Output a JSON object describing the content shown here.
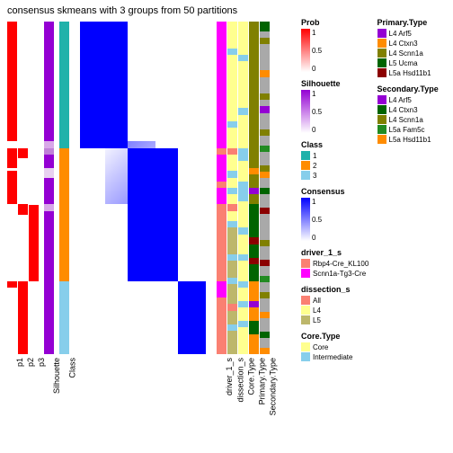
{
  "title": "consensus skmeans with 3 groups from 50 partitions",
  "colors": {
    "red": "#ff0000",
    "purple": "#9400d3",
    "teal": "#20b2aa",
    "orange": "#ff8c00",
    "lightblue": "#87ceeb",
    "blue": "#0000ff",
    "white": "#ffffff",
    "magenta": "#ff00ff",
    "salmon": "#fa8072",
    "yellow": "#ffff8f",
    "khaki": "#bdb76b",
    "olive": "#808000",
    "darkgreen": "#006400",
    "darkred": "#8b0000",
    "green": "#228b22",
    "gray": "#a9a9a9"
  },
  "columns": [
    {
      "key": "p1",
      "label": "p1",
      "width": 11
    },
    {
      "key": "p2",
      "label": "p2",
      "width": 11
    },
    {
      "key": "p3",
      "label": "p3",
      "width": 11
    },
    {
      "key": "gap1",
      "label": "",
      "width": 4
    },
    {
      "key": "silhouette",
      "label": "Silhouette",
      "width": 11
    },
    {
      "key": "gap2",
      "label": "",
      "width": 4
    },
    {
      "key": "class",
      "label": "Class",
      "width": 11
    },
    {
      "key": "gap3",
      "label": "",
      "width": 10
    },
    {
      "key": "consensus",
      "label": "",
      "width": 140
    },
    {
      "key": "gap4",
      "label": "",
      "width": 10
    },
    {
      "key": "driver",
      "label": "driver_1_s",
      "width": 11
    },
    {
      "key": "dissection",
      "label": "dissection_s",
      "width": 11
    },
    {
      "key": "coretype",
      "label": "Core.Type",
      "width": 11
    },
    {
      "key": "primary",
      "label": "Primary.Type",
      "width": 11
    },
    {
      "key": "secondary",
      "label": "Secondary.Type",
      "width": 11
    }
  ],
  "rows": 100,
  "blocks": {
    "p1": [
      {
        "h": 0.36,
        "c": "red"
      },
      {
        "h": 0.02,
        "c": "white"
      },
      {
        "h": 0.06,
        "c": "red"
      },
      {
        "h": 0.01,
        "c": "white"
      },
      {
        "h": 0.1,
        "c": "red"
      },
      {
        "h": 0.23,
        "c": "white"
      },
      {
        "h": 0.02,
        "c": "red"
      },
      {
        "h": 0.2,
        "c": "white"
      }
    ],
    "p2": [
      {
        "h": 0.38,
        "c": "white"
      },
      {
        "h": 0.03,
        "c": "red"
      },
      {
        "h": 0.14,
        "c": "white"
      },
      {
        "h": 0.03,
        "c": "red"
      },
      {
        "h": 0.2,
        "c": "white"
      },
      {
        "h": 0.22,
        "c": "red"
      }
    ],
    "p3": [
      {
        "h": 0.55,
        "c": "white"
      },
      {
        "h": 0.23,
        "c": "red"
      },
      {
        "h": 0.22,
        "c": "white"
      }
    ],
    "silhouette": [
      {
        "h": 0.36,
        "c": "purple"
      },
      {
        "h": 0.02,
        "c": "#d8a8e8"
      },
      {
        "h": 0.02,
        "c": "#c080d8"
      },
      {
        "h": 0.04,
        "c": "purple"
      },
      {
        "h": 0.03,
        "c": "#e8d0f0"
      },
      {
        "h": 0.08,
        "c": "purple"
      },
      {
        "h": 0.02,
        "c": "#d8a8e8"
      },
      {
        "h": 0.43,
        "c": "purple"
      }
    ],
    "class": [
      {
        "h": 0.38,
        "c": "teal"
      },
      {
        "h": 0.4,
        "c": "orange"
      },
      {
        "h": 0.22,
        "c": "lightblue"
      }
    ],
    "driver": [
      {
        "h": 0.38,
        "c": "magenta"
      },
      {
        "h": 0.02,
        "c": "salmon"
      },
      {
        "h": 0.08,
        "c": "magenta"
      },
      {
        "h": 0.02,
        "c": "salmon"
      },
      {
        "h": 0.05,
        "c": "magenta"
      },
      {
        "h": 0.23,
        "c": "salmon"
      },
      {
        "h": 0.05,
        "c": "magenta"
      },
      {
        "h": 0.17,
        "c": "salmon"
      }
    ],
    "dissection": [
      {
        "h": 0.08,
        "c": "yellow"
      },
      {
        "h": 0.02,
        "c": "lightblue"
      },
      {
        "h": 0.2,
        "c": "yellow"
      },
      {
        "h": 0.02,
        "c": "lightblue"
      },
      {
        "h": 0.06,
        "c": "yellow"
      },
      {
        "h": 0.02,
        "c": "salmon"
      },
      {
        "h": 0.05,
        "c": "yellow"
      },
      {
        "h": 0.02,
        "c": "lightblue"
      },
      {
        "h": 0.03,
        "c": "yellow"
      },
      {
        "h": 0.02,
        "c": "lightblue"
      },
      {
        "h": 0.03,
        "c": "yellow"
      },
      {
        "h": 0.02,
        "c": "salmon"
      },
      {
        "h": 0.03,
        "c": "yellow"
      },
      {
        "h": 0.02,
        "c": "lightblue"
      },
      {
        "h": 0.08,
        "c": "khaki"
      },
      {
        "h": 0.02,
        "c": "lightblue"
      },
      {
        "h": 0.05,
        "c": "khaki"
      },
      {
        "h": 0.02,
        "c": "lightblue"
      },
      {
        "h": 0.06,
        "c": "khaki"
      },
      {
        "h": 0.02,
        "c": "salmon"
      },
      {
        "h": 0.04,
        "c": "khaki"
      },
      {
        "h": 0.02,
        "c": "lightblue"
      },
      {
        "h": 0.07,
        "c": "khaki"
      }
    ],
    "coretype": [
      {
        "h": 0.1,
        "c": "yellow"
      },
      {
        "h": 0.02,
        "c": "lightblue"
      },
      {
        "h": 0.14,
        "c": "yellow"
      },
      {
        "h": 0.02,
        "c": "lightblue"
      },
      {
        "h": 0.1,
        "c": "yellow"
      },
      {
        "h": 0.04,
        "c": "lightblue"
      },
      {
        "h": 0.06,
        "c": "yellow"
      },
      {
        "h": 0.06,
        "c": "lightblue"
      },
      {
        "h": 0.08,
        "c": "yellow"
      },
      {
        "h": 0.02,
        "c": "lightblue"
      },
      {
        "h": 0.06,
        "c": "yellow"
      },
      {
        "h": 0.02,
        "c": "lightblue"
      },
      {
        "h": 0.06,
        "c": "yellow"
      },
      {
        "h": 0.02,
        "c": "lightblue"
      },
      {
        "h": 0.04,
        "c": "yellow"
      },
      {
        "h": 0.02,
        "c": "lightblue"
      },
      {
        "h": 0.04,
        "c": "yellow"
      },
      {
        "h": 0.02,
        "c": "lightblue"
      },
      {
        "h": 0.08,
        "c": "yellow"
      }
    ],
    "primary": [
      {
        "h": 0.38,
        "c": "olive"
      },
      {
        "h": 0.06,
        "c": "olive"
      },
      {
        "h": 0.02,
        "c": "orange"
      },
      {
        "h": 0.04,
        "c": "olive"
      },
      {
        "h": 0.02,
        "c": "purple"
      },
      {
        "h": 0.03,
        "c": "olive"
      },
      {
        "h": 0.1,
        "c": "darkgreen"
      },
      {
        "h": 0.02,
        "c": "darkred"
      },
      {
        "h": 0.04,
        "c": "darkgreen"
      },
      {
        "h": 0.02,
        "c": "darkred"
      },
      {
        "h": 0.05,
        "c": "darkgreen"
      },
      {
        "h": 0.06,
        "c": "orange"
      },
      {
        "h": 0.02,
        "c": "purple"
      },
      {
        "h": 0.04,
        "c": "orange"
      },
      {
        "h": 0.04,
        "c": "darkgreen"
      },
      {
        "h": 0.06,
        "c": "orange"
      }
    ],
    "secondary": [
      {
        "h": 0.03,
        "c": "darkgreen"
      },
      {
        "h": 0.02,
        "c": "gray"
      },
      {
        "h": 0.02,
        "c": "olive"
      },
      {
        "h": 0.08,
        "c": "gray"
      },
      {
        "h": 0.02,
        "c": "orange"
      },
      {
        "h": 0.05,
        "c": "gray"
      },
      {
        "h": 0.02,
        "c": "olive"
      },
      {
        "h": 0.02,
        "c": "gray"
      },
      {
        "h": 0.02,
        "c": "purple"
      },
      {
        "h": 0.05,
        "c": "gray"
      },
      {
        "h": 0.02,
        "c": "olive"
      },
      {
        "h": 0.03,
        "c": "gray"
      },
      {
        "h": 0.02,
        "c": "green"
      },
      {
        "h": 0.04,
        "c": "gray"
      },
      {
        "h": 0.02,
        "c": "olive"
      },
      {
        "h": 0.02,
        "c": "orange"
      },
      {
        "h": 0.03,
        "c": "gray"
      },
      {
        "h": 0.02,
        "c": "darkgreen"
      },
      {
        "h": 0.04,
        "c": "gray"
      },
      {
        "h": 0.02,
        "c": "darkred"
      },
      {
        "h": 0.08,
        "c": "gray"
      },
      {
        "h": 0.02,
        "c": "olive"
      },
      {
        "h": 0.04,
        "c": "gray"
      },
      {
        "h": 0.02,
        "c": "darkred"
      },
      {
        "h": 0.03,
        "c": "gray"
      },
      {
        "h": 0.02,
        "c": "green"
      },
      {
        "h": 0.03,
        "c": "gray"
      },
      {
        "h": 0.02,
        "c": "olive"
      },
      {
        "h": 0.04,
        "c": "gray"
      },
      {
        "h": 0.02,
        "c": "orange"
      },
      {
        "h": 0.04,
        "c": "gray"
      },
      {
        "h": 0.02,
        "c": "darkgreen"
      },
      {
        "h": 0.03,
        "c": "gray"
      },
      {
        "h": 0.02,
        "c": "orange"
      }
    ]
  },
  "legends_left": [
    {
      "title": "Prob",
      "type": "gradient",
      "colors": [
        "#ffffff",
        "#ff0000"
      ],
      "labels": [
        {
          "v": "1",
          "p": 0
        },
        {
          "v": "0.5",
          "p": 0.5
        },
        {
          "v": "0",
          "p": 1
        }
      ]
    },
    {
      "title": "Silhouette",
      "type": "gradient",
      "colors": [
        "#ffffff",
        "#9400d3"
      ],
      "labels": [
        {
          "v": "1",
          "p": 0
        },
        {
          "v": "0.5",
          "p": 0.5
        },
        {
          "v": "0",
          "p": 1
        }
      ]
    },
    {
      "title": "Class",
      "type": "swatches",
      "items": [
        {
          "c": "teal",
          "l": "1"
        },
        {
          "c": "orange",
          "l": "2"
        },
        {
          "c": "lightblue",
          "l": "3"
        }
      ]
    },
    {
      "title": "Consensus",
      "type": "gradient",
      "colors": [
        "#ffffff",
        "#0000ff"
      ],
      "labels": [
        {
          "v": "1",
          "p": 0
        },
        {
          "v": "0.5",
          "p": 0.5
        },
        {
          "v": "0",
          "p": 1
        }
      ]
    },
    {
      "title": "driver_1_s",
      "type": "swatches",
      "items": [
        {
          "c": "salmon",
          "l": "Rbp4-Cre_KL100"
        },
        {
          "c": "magenta",
          "l": "Scnn1a-Tg3-Cre"
        }
      ]
    },
    {
      "title": "dissection_s",
      "type": "swatches",
      "items": [
        {
          "c": "salmon",
          "l": "All"
        },
        {
          "c": "yellow",
          "l": "L4"
        },
        {
          "c": "khaki",
          "l": "L5"
        }
      ]
    },
    {
      "title": "Core.Type",
      "type": "swatches",
      "items": [
        {
          "c": "yellow",
          "l": "Core"
        },
        {
          "c": "lightblue",
          "l": "Intermediate"
        }
      ]
    }
  ],
  "legends_right": [
    {
      "title": "Primary.Type",
      "type": "swatches",
      "items": [
        {
          "c": "purple",
          "l": "L4 Arf5"
        },
        {
          "c": "orange",
          "l": "L4 Ctxn3"
        },
        {
          "c": "olive",
          "l": "L4 Scnn1a"
        },
        {
          "c": "darkgreen",
          "l": "L5 Ucma"
        },
        {
          "c": "darkred",
          "l": "L5a Hsd11b1"
        }
      ]
    },
    {
      "title": "Secondary.Type",
      "type": "swatches",
      "items": [
        {
          "c": "purple",
          "l": "L4 Arf5"
        },
        {
          "c": "darkgreen",
          "l": "L4 Ctxn3"
        },
        {
          "c": "olive",
          "l": "L4 Scnn1a"
        },
        {
          "c": "green",
          "l": "L5a Fam5c"
        },
        {
          "c": "orange",
          "l": "L5a Hsd11b1"
        }
      ]
    }
  ]
}
